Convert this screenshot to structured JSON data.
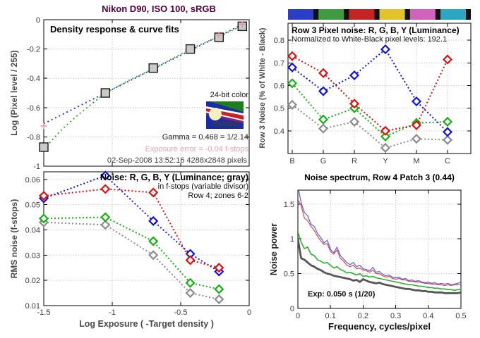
{
  "figure": {
    "title": "Nikon D90, ISO 100, sRGB",
    "title_color": "#520040",
    "background": "#ffffff"
  },
  "logo": {
    "label": "24-bit color",
    "text": "Imatest"
  },
  "chart_data": [
    {
      "id": "density_response",
      "type": "scatter",
      "title": "Density response & curve fits",
      "ylabel": "Log (Pixel level / 255)",
      "xlim": [
        -1.5,
        0
      ],
      "ylim": [
        -1,
        0
      ],
      "yticks": [
        "0",
        "-0.2",
        "-0.4",
        "-0.6",
        "-0.8",
        "-1"
      ],
      "ytick_vals": [
        0,
        -0.2,
        -0.4,
        -0.6,
        -0.8,
        -1
      ],
      "ygrid_vals": [
        -0.2,
        -0.4,
        -0.6,
        -0.8
      ],
      "xgrid_vals": [
        -1,
        -0.5
      ],
      "points_x": [
        -1.5,
        -1.05,
        -0.7,
        -0.43,
        -0.22,
        -0.05
      ],
      "points_y": [
        -0.87,
        -0.5,
        -0.33,
        -0.2,
        -0.12,
        -0.045
      ],
      "fit_blue": {
        "x": [
          -1.5,
          -0.04
        ],
        "y": [
          -0.71,
          -0.028
        ]
      },
      "fit_green": {
        "x": [
          -1.5,
          -1.38,
          -1.25,
          -1.15,
          -1.05,
          -0.88,
          -0.7,
          -0.56,
          -0.43,
          -0.32,
          -0.22,
          -0.13,
          -0.05
        ],
        "y": [
          -0.885,
          -0.76,
          -0.65,
          -0.575,
          -0.5,
          -0.415,
          -0.335,
          -0.265,
          -0.2,
          -0.155,
          -0.115,
          -0.075,
          -0.042
        ]
      },
      "pink_markers": {
        "x": [
          -1.5,
          -0.22,
          -0.05
        ],
        "y": [
          -0.725,
          -0.105,
          -0.033
        ]
      },
      "annotations": {
        "gamma": "Gamma = 0.468 = 1/2.14",
        "exposure_error": "Exposure error = -0.04 f-stops",
        "datetime": "02-Sep-2008 13:52:16   4288x2848 pixels"
      },
      "colors": {
        "points": "#c9c9c9",
        "fit_blue": "#2828cc",
        "fit_green": "#28a828",
        "pink": "#ef96a0"
      }
    },
    {
      "id": "rms_noise",
      "type": "line",
      "title": "Noise: R, G, B, Y (Luminance; gray)",
      "subtitle1": "in f-stops (variable divisor)",
      "subtitle2": "Row 4; zones 6-2",
      "ylabel": "RMS noise (f-stops)",
      "xlabel": "Log Exposure ( -Target density )",
      "xlim": [
        -1.5,
        0
      ],
      "ylim": [
        0.01,
        0.063
      ],
      "yticks": [
        "0.01",
        "0.02",
        "0.03",
        "0.04",
        "0.05",
        "0.06"
      ],
      "ytick_vals": [
        0.01,
        0.02,
        0.03,
        0.04,
        0.05,
        0.06
      ],
      "ygrid_vals": [
        0.02,
        0.03,
        0.04,
        0.05,
        0.06
      ],
      "xticks": [
        "-1.5",
        "-1",
        "-0.5",
        "0"
      ],
      "xtick_vals": [
        -1.5,
        -1,
        -0.5,
        0
      ],
      "xgrid_vals": [
        -1,
        -0.5
      ],
      "x": [
        -1.5,
        -1.05,
        -0.7,
        -0.43,
        -0.22
      ],
      "series": [
        {
          "name": "R",
          "color": "#dd1111",
          "values": [
            0.0535,
            0.0562,
            0.0548,
            0.028,
            0.025
          ]
        },
        {
          "name": "G",
          "color": "#12b212",
          "values": [
            0.0445,
            0.045,
            0.0355,
            0.019,
            0.0165
          ]
        },
        {
          "name": "B",
          "color": "#1212dd",
          "values": [
            0.0525,
            0.0615,
            0.0435,
            0.0305,
            0.0235
          ]
        },
        {
          "name": "Y",
          "color": "#8c8c8c",
          "values": [
            0.043,
            0.042,
            0.03,
            0.015,
            0.0125
          ]
        }
      ]
    },
    {
      "id": "pixel_noise",
      "type": "line",
      "title": "Row 3 Pixel noise: R, G, B, Y (Luminance)",
      "subtitle": "Normalized to White-Black pixel levels: 192.1",
      "ylabel": "Row 3 Noise (% of White - Black)",
      "categories": [
        "B",
        "G",
        "R",
        "Y",
        "M",
        "C"
      ],
      "patch_colors": [
        "#2a3ec6",
        "#3f9b3f",
        "#c32525",
        "#e2c32b",
        "#d162ba",
        "#2ba6c2"
      ],
      "ylim": [
        0.3,
        0.875
      ],
      "yticks": [
        "0.4",
        "0.5",
        "0.6",
        "0.7",
        "0.8"
      ],
      "ytick_vals": [
        0.4,
        0.5,
        0.6,
        0.7,
        0.8
      ],
      "series": [
        {
          "name": "R",
          "color": "#dd1111",
          "values": [
            0.73,
            0.655,
            0.52,
            0.4,
            0.425,
            0.715
          ]
        },
        {
          "name": "G",
          "color": "#12b212",
          "values": [
            0.61,
            0.45,
            0.5,
            0.375,
            0.435,
            0.44
          ]
        },
        {
          "name": "B",
          "color": "#1212dd",
          "values": [
            0.68,
            0.575,
            0.645,
            0.76,
            0.53,
            0.395
          ]
        },
        {
          "name": "Y",
          "color": "#8c8c8c",
          "values": [
            0.515,
            0.41,
            0.44,
            0.325,
            0.365,
            0.36
          ]
        }
      ]
    },
    {
      "id": "noise_spectrum",
      "type": "line",
      "title": "Noise spectrum, Row 4 Patch 3 (0.44)",
      "xlabel": "Frequency, cycles/pixel",
      "ylabel": "Noise power",
      "annotation": "Exp:   0.050 s  (1/20)",
      "xlim": [
        0,
        0.5
      ],
      "ylim": [
        0,
        1.7
      ],
      "xticks": [
        "0",
        "0.1",
        "0.2",
        "0.3",
        "0.4",
        "0.5"
      ],
      "xtick_vals": [
        0,
        0.1,
        0.2,
        0.3,
        0.4,
        0.5
      ],
      "xgrid_vals": [
        0.1,
        0.2,
        0.3,
        0.4
      ],
      "yticks": [
        "0",
        "0.5",
        "1",
        "1.5"
      ],
      "ytick_vals": [
        0,
        0.5,
        1,
        1.5
      ],
      "ygrid_vals": [
        0.5,
        1,
        1.5
      ],
      "x": [
        0,
        0.01,
        0.02,
        0.03,
        0.04,
        0.05,
        0.06,
        0.07,
        0.08,
        0.09,
        0.1,
        0.11,
        0.12,
        0.13,
        0.14,
        0.15,
        0.16,
        0.17,
        0.18,
        0.19,
        0.2,
        0.21,
        0.22,
        0.23,
        0.24,
        0.25,
        0.26,
        0.27,
        0.28,
        0.29,
        0.3,
        0.31,
        0.32,
        0.33,
        0.34,
        0.35,
        0.36,
        0.37,
        0.38,
        0.39,
        0.4,
        0.41,
        0.42,
        0.43,
        0.44,
        0.45,
        0.46,
        0.47,
        0.48,
        0.49,
        0.5
      ],
      "series": [
        {
          "name": "B",
          "color": "#5b5bdf",
          "width": 1.2,
          "values": [
            1.76,
            1.52,
            1.38,
            1.33,
            1.21,
            1.18,
            1.08,
            1.02,
            0.94,
            0.98,
            0.85,
            0.8,
            0.88,
            0.76,
            0.71,
            0.66,
            0.63,
            0.66,
            0.6,
            0.62,
            0.57,
            0.56,
            0.54,
            0.59,
            0.52,
            0.53,
            0.49,
            0.47,
            0.48,
            0.45,
            0.44,
            0.45,
            0.42,
            0.43,
            0.4,
            0.41,
            0.39,
            0.4,
            0.38,
            0.37,
            0.38,
            0.36,
            0.37,
            0.35,
            0.36,
            0.35,
            0.36,
            0.34,
            0.35,
            0.36,
            0.38
          ]
        },
        {
          "name": "R",
          "color": "#d84a4a",
          "width": 1.2,
          "values": [
            1.56,
            1.48,
            1.3,
            1.26,
            1.18,
            1.12,
            1.04,
            0.97,
            0.92,
            0.93,
            0.82,
            0.78,
            0.84,
            0.72,
            0.68,
            0.62,
            0.6,
            0.62,
            0.57,
            0.58,
            0.55,
            0.54,
            0.52,
            0.55,
            0.5,
            0.5,
            0.47,
            0.45,
            0.46,
            0.43,
            0.42,
            0.43,
            0.41,
            0.41,
            0.39,
            0.39,
            0.38,
            0.38,
            0.37,
            0.36,
            0.36,
            0.35,
            0.35,
            0.34,
            0.34,
            0.33,
            0.34,
            0.33,
            0.34,
            0.34,
            0.35
          ]
        },
        {
          "name": "G",
          "color": "#2ab22a",
          "width": 1.6,
          "values": [
            1.1,
            0.95,
            0.86,
            0.88,
            0.78,
            0.76,
            0.7,
            0.68,
            0.65,
            0.66,
            0.62,
            0.58,
            0.6,
            0.56,
            0.54,
            0.51,
            0.52,
            0.5,
            0.48,
            0.5,
            0.46,
            0.47,
            0.45,
            0.46,
            0.44,
            0.43,
            0.42,
            0.41,
            0.4,
            0.39,
            0.38,
            0.37,
            0.36,
            0.35,
            0.34,
            0.34,
            0.33,
            0.32,
            0.32,
            0.31,
            0.3,
            0.3,
            0.29,
            0.29,
            0.28,
            0.28,
            0.27,
            0.27,
            0.26,
            0.27,
            0.27
          ]
        },
        {
          "name": "Y",
          "color": "#565656",
          "width": 2.8,
          "values": [
            1.0,
            0.72,
            0.7,
            0.66,
            0.62,
            0.6,
            0.57,
            0.55,
            0.52,
            0.5,
            0.49,
            0.47,
            0.46,
            0.45,
            0.44,
            0.43,
            0.42,
            0.4,
            0.41,
            0.38,
            0.42,
            0.4,
            0.38,
            0.37,
            0.36,
            0.37,
            0.35,
            0.34,
            0.33,
            0.32,
            0.31,
            0.3,
            0.29,
            0.28,
            0.28,
            0.27,
            0.26,
            0.26,
            0.25,
            0.25,
            0.24,
            0.24,
            0.23,
            0.23,
            0.23,
            0.22,
            0.22,
            0.22,
            0.22,
            0.22,
            0.23
          ]
        }
      ]
    }
  ]
}
